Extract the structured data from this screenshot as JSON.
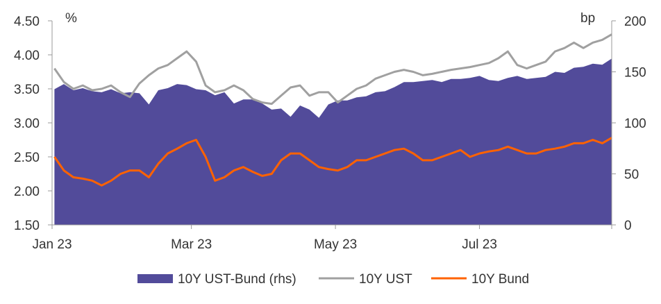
{
  "chart_data": {
    "type": "area",
    "x_ticks": [
      "Jan 23",
      "Mar 23",
      "May 23",
      "Jul 23"
    ],
    "left_axis": {
      "unit": "%",
      "ylim": [
        1.5,
        4.5
      ],
      "ticks": [
        "1.50",
        "2.00",
        "2.50",
        "3.00",
        "3.50",
        "4.00",
        "4.50"
      ]
    },
    "right_axis": {
      "unit": "bp",
      "ylim": [
        0,
        200
      ],
      "ticks": [
        "0",
        "50",
        "100",
        "150",
        "200"
      ]
    },
    "grid": false,
    "legend_position": "bottom",
    "x": [
      "2023-01-02",
      "2023-01-06",
      "2023-01-10",
      "2023-01-14",
      "2023-01-18",
      "2023-01-22",
      "2023-01-26",
      "2023-01-30",
      "2023-02-03",
      "2023-02-07",
      "2023-02-11",
      "2023-02-15",
      "2023-02-19",
      "2023-02-23",
      "2023-02-27",
      "2023-03-03",
      "2023-03-07",
      "2023-03-11",
      "2023-03-15",
      "2023-03-19",
      "2023-03-23",
      "2023-03-27",
      "2023-03-31",
      "2023-04-04",
      "2023-04-08",
      "2023-04-12",
      "2023-04-16",
      "2023-04-20",
      "2023-04-24",
      "2023-04-28",
      "2023-05-02",
      "2023-05-06",
      "2023-05-10",
      "2023-05-14",
      "2023-05-18",
      "2023-05-22",
      "2023-05-26",
      "2023-05-30",
      "2023-06-03",
      "2023-06-07",
      "2023-06-11",
      "2023-06-15",
      "2023-06-19",
      "2023-06-23",
      "2023-06-27",
      "2023-07-01",
      "2023-07-05",
      "2023-07-09",
      "2023-07-13",
      "2023-07-17",
      "2023-07-21",
      "2023-07-25",
      "2023-07-29",
      "2023-08-02",
      "2023-08-06",
      "2023-08-10",
      "2023-08-14",
      "2023-08-18",
      "2023-08-22",
      "2023-08-26"
    ],
    "series": [
      {
        "name": "10Y UST-Bund (rhs)",
        "type": "area",
        "axis": "right",
        "color": "#524b9a",
        "values": [
          133,
          138,
          132,
          134,
          131,
          130,
          133,
          129,
          130,
          129,
          118,
          132,
          134,
          138,
          137,
          133,
          132,
          127,
          130,
          119,
          123,
          123,
          119,
          113,
          114,
          106,
          117,
          113,
          105,
          118,
          122,
          122,
          125,
          126,
          130,
          131,
          135,
          140,
          140,
          141,
          142,
          140,
          143,
          143,
          144,
          146,
          142,
          141,
          144,
          146,
          143,
          144,
          145,
          150,
          149,
          154,
          155,
          158,
          157,
          163
        ]
      },
      {
        "name": "10Y UST",
        "type": "line",
        "axis": "left",
        "color": "#a0a0a0",
        "values": [
          3.8,
          3.6,
          3.5,
          3.55,
          3.48,
          3.5,
          3.55,
          3.45,
          3.38,
          3.58,
          3.7,
          3.8,
          3.85,
          3.95,
          4.05,
          3.9,
          3.55,
          3.45,
          3.48,
          3.55,
          3.48,
          3.35,
          3.3,
          3.28,
          3.4,
          3.52,
          3.55,
          3.4,
          3.45,
          3.45,
          3.3,
          3.4,
          3.5,
          3.55,
          3.65,
          3.7,
          3.75,
          3.78,
          3.75,
          3.7,
          3.72,
          3.75,
          3.78,
          3.8,
          3.82,
          3.85,
          3.88,
          3.95,
          4.05,
          3.85,
          3.8,
          3.85,
          3.9,
          4.05,
          4.1,
          4.18,
          4.1,
          4.18,
          4.22,
          4.3
        ]
      },
      {
        "name": "10Y Bund",
        "type": "line",
        "axis": "left",
        "color": "#ff6200",
        "values": [
          2.5,
          2.3,
          2.2,
          2.18,
          2.15,
          2.08,
          2.15,
          2.25,
          2.3,
          2.3,
          2.2,
          2.4,
          2.55,
          2.62,
          2.7,
          2.75,
          2.5,
          2.15,
          2.2,
          2.3,
          2.35,
          2.28,
          2.22,
          2.25,
          2.45,
          2.55,
          2.55,
          2.45,
          2.35,
          2.32,
          2.3,
          2.35,
          2.45,
          2.45,
          2.5,
          2.55,
          2.6,
          2.62,
          2.55,
          2.45,
          2.45,
          2.5,
          2.55,
          2.6,
          2.5,
          2.55,
          2.58,
          2.6,
          2.65,
          2.6,
          2.55,
          2.55,
          2.6,
          2.62,
          2.65,
          2.7,
          2.7,
          2.75,
          2.7,
          2.78
        ]
      }
    ]
  }
}
